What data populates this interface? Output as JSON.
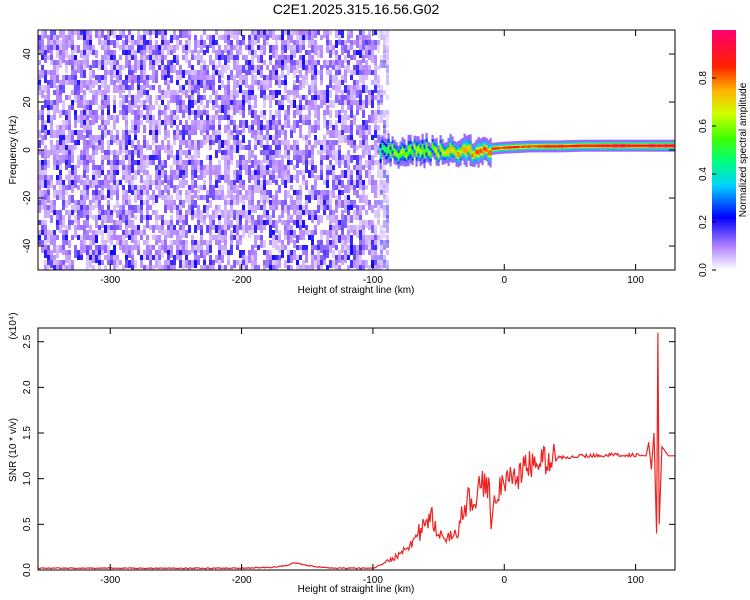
{
  "title": "C2E1.2025.315.16.56.G02",
  "chart_data": [
    {
      "type": "heatmap",
      "xlabel": "Height of straight line (km)",
      "ylabel": "Frequency (Hz)",
      "xlim": [
        -355,
        130
      ],
      "ylim": [
        -50,
        50
      ],
      "xticks": [
        "-300",
        "-200",
        "-100",
        "0",
        "100"
      ],
      "xtick_values": [
        -300,
        -200,
        -100,
        0,
        100
      ],
      "yticks": [
        "-40",
        "-20",
        "0",
        "20",
        "40"
      ],
      "ytick_values": [
        -40,
        -20,
        0,
        20,
        40
      ],
      "colorbar": {
        "label": "Normalized spectral amplitude",
        "range": [
          0,
          1
        ],
        "ticks": [
          "0.0",
          "0.2",
          "0.4",
          "0.6",
          "0.8"
        ],
        "tick_values": [
          0.0,
          0.2,
          0.4,
          0.6,
          0.8
        ]
      },
      "noise_region": {
        "x_range": [
          -355,
          -90
        ],
        "freq_range": [
          -50,
          50
        ],
        "amplitude_range": [
          0.0,
          0.2
        ]
      },
      "signal_trace": {
        "x": [
          -95,
          -80,
          -60,
          -40,
          -20,
          0,
          20,
          40,
          60,
          80,
          100,
          120,
          130
        ],
        "freq": [
          0,
          -1,
          0,
          -1,
          0,
          1,
          1.5,
          1.5,
          1.8,
          1.8,
          1.8,
          1.8,
          1.8
        ],
        "amplitude": [
          0.5,
          0.6,
          0.6,
          0.7,
          0.8,
          0.85,
          0.85,
          0.9,
          0.9,
          0.95,
          0.95,
          0.95,
          0.95
        ]
      }
    },
    {
      "type": "line",
      "xlabel": "Height of straight line (km)",
      "ylabel": "SNR (10 * v/v)",
      "yscale_note": "(x10⁴)",
      "xlim": [
        -355,
        130
      ],
      "ylim": [
        0,
        2.65
      ],
      "xticks": [
        "-300",
        "-200",
        "-100",
        "0",
        "100"
      ],
      "xtick_values": [
        -300,
        -200,
        -100,
        0,
        100
      ],
      "yticks": [
        "0.0",
        "0.5",
        "1.0",
        "1.5",
        "2.0",
        "2.5"
      ],
      "ytick_values": [
        0.0,
        0.5,
        1.0,
        1.5,
        2.0,
        2.5
      ],
      "series": [
        {
          "color": "#ee2222",
          "x": [
            -355,
            -300,
            -250,
            -200,
            -175,
            -165,
            -160,
            -150,
            -140,
            -130,
            -120,
            -100,
            -95,
            -85,
            -75,
            -65,
            -55,
            -50,
            -45,
            -40,
            -35,
            -30,
            -25,
            -20,
            -15,
            -12,
            -10,
            -5,
            0,
            10,
            20,
            30,
            40,
            60,
            80,
            100,
            108,
            110,
            112,
            114,
            116,
            117,
            118,
            120,
            125,
            130
          ],
          "y": [
            0.02,
            0.02,
            0.02,
            0.02,
            0.03,
            0.05,
            0.08,
            0.05,
            0.03,
            0.02,
            0.02,
            0.02,
            0.05,
            0.12,
            0.25,
            0.4,
            0.55,
            0.45,
            0.3,
            0.35,
            0.5,
            0.65,
            0.8,
            0.85,
            0.95,
            0.9,
            0.6,
            0.9,
            0.95,
            1.05,
            1.15,
            1.2,
            1.23,
            1.25,
            1.26,
            1.26,
            1.25,
            1.4,
            1.1,
            1.5,
            0.4,
            2.6,
            0.5,
            1.35,
            1.25,
            1.25
          ]
        }
      ]
    }
  ]
}
